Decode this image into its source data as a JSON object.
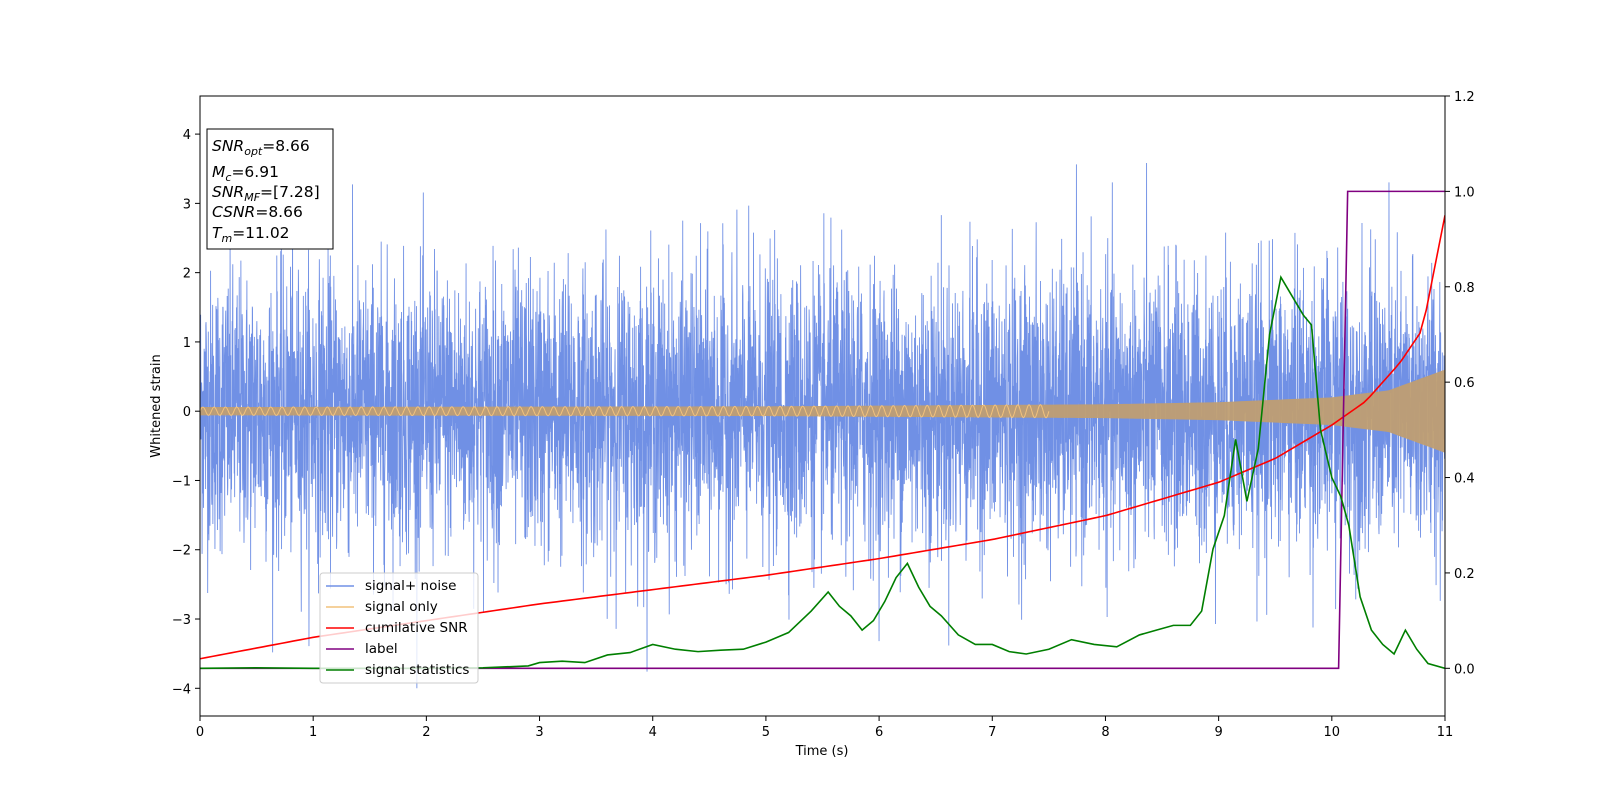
{
  "chart_data": {
    "type": "line",
    "xlabel": "Time (s)",
    "ylabel": "Whitened strain",
    "xlim": [
      0,
      11
    ],
    "ylim_left": [
      -4.4,
      4.55
    ],
    "ylim_right": [
      -0.1,
      1.2
    ],
    "x_ticks": [
      "0",
      "1",
      "2",
      "3",
      "4",
      "5",
      "6",
      "7",
      "8",
      "9",
      "10",
      "11"
    ],
    "y_ticks_left": [
      "4",
      "3",
      "2",
      "1",
      "0",
      "−1",
      "−2",
      "−3",
      "−4"
    ],
    "y_ticks_right": [
      "1.2",
      "1.0",
      "0.8",
      "0.6",
      "0.4",
      "0.2",
      "0.0"
    ],
    "annotation": {
      "snr_opt": {
        "sym": "SNR",
        "sub": "opt",
        "value": "=8.66"
      },
      "mc": {
        "sym": "M",
        "sub": "c",
        "value": "=6.91"
      },
      "snr_mf": {
        "sym": "SNR",
        "sub": "MF",
        "value": "=[7.28]"
      },
      "csnr": {
        "sym": "CSNR",
        "value": "=8.66"
      },
      "tm": {
        "sym": "T",
        "sub": "m",
        "value": "=11.02"
      }
    },
    "legend_position": "lower-left",
    "series": [
      {
        "name": "signal+ noise",
        "axis": "left",
        "color": "#7090e5",
        "description_values": {
          "noise_std": 1.0,
          "peak_max": 4.15,
          "peak_min": -4.0
        }
      },
      {
        "name": "signal only",
        "axis": "left",
        "color": "#f2c27c",
        "envelope": {
          "x": [
            0,
            5,
            8,
            9,
            10,
            10.5,
            11
          ],
          "y": [
            0.06,
            0.07,
            0.1,
            0.13,
            0.2,
            0.3,
            0.6
          ]
        }
      },
      {
        "name": "cumilative SNR",
        "axis": "right",
        "color": "#ff0000",
        "x": [
          0,
          1,
          2,
          3,
          4,
          5,
          6,
          7,
          8,
          9,
          9.5,
          10,
          10.3,
          10.6,
          10.8,
          11
        ],
        "y": [
          0.02,
          0.065,
          0.1,
          0.135,
          0.165,
          0.195,
          0.23,
          0.27,
          0.32,
          0.39,
          0.44,
          0.51,
          0.56,
          0.64,
          0.71,
          0.95
        ]
      },
      {
        "name": "label",
        "axis": "right",
        "color": "#800080",
        "x": [
          0,
          10.06,
          10.14,
          11
        ],
        "y": [
          0.0,
          0.0,
          1.0,
          1.0
        ]
      },
      {
        "name": "signal statistics",
        "axis": "right",
        "color": "#007f00",
        "x": [
          0,
          0.5,
          1,
          1.5,
          2,
          2.5,
          2.9,
          3.0,
          3.2,
          3.4,
          3.6,
          3.8,
          4.0,
          4.2,
          4.4,
          4.6,
          4.8,
          5.0,
          5.2,
          5.4,
          5.55,
          5.65,
          5.75,
          5.85,
          5.95,
          6.05,
          6.15,
          6.25,
          6.35,
          6.45,
          6.55,
          6.7,
          6.85,
          7.0,
          7.15,
          7.3,
          7.5,
          7.7,
          7.9,
          8.1,
          8.3,
          8.45,
          8.6,
          8.75,
          8.85,
          8.95,
          9.05,
          9.15,
          9.25,
          9.35,
          9.45,
          9.55,
          9.65,
          9.75,
          9.82,
          9.9,
          10.0,
          10.08,
          10.15,
          10.25,
          10.35,
          10.45,
          10.55,
          10.65,
          10.75,
          10.85,
          11.0
        ],
        "y": [
          0.0,
          0.001,
          0.0,
          0.0,
          0.0,
          0.001,
          0.005,
          0.012,
          0.015,
          0.012,
          0.028,
          0.033,
          0.05,
          0.04,
          0.035,
          0.038,
          0.04,
          0.055,
          0.075,
          0.12,
          0.16,
          0.13,
          0.11,
          0.08,
          0.1,
          0.14,
          0.19,
          0.22,
          0.17,
          0.13,
          0.11,
          0.07,
          0.05,
          0.05,
          0.035,
          0.03,
          0.04,
          0.06,
          0.05,
          0.045,
          0.07,
          0.08,
          0.09,
          0.09,
          0.12,
          0.25,
          0.32,
          0.48,
          0.35,
          0.46,
          0.7,
          0.82,
          0.78,
          0.74,
          0.72,
          0.5,
          0.4,
          0.36,
          0.3,
          0.15,
          0.08,
          0.05,
          0.03,
          0.08,
          0.04,
          0.01,
          0.0
        ]
      }
    ]
  }
}
